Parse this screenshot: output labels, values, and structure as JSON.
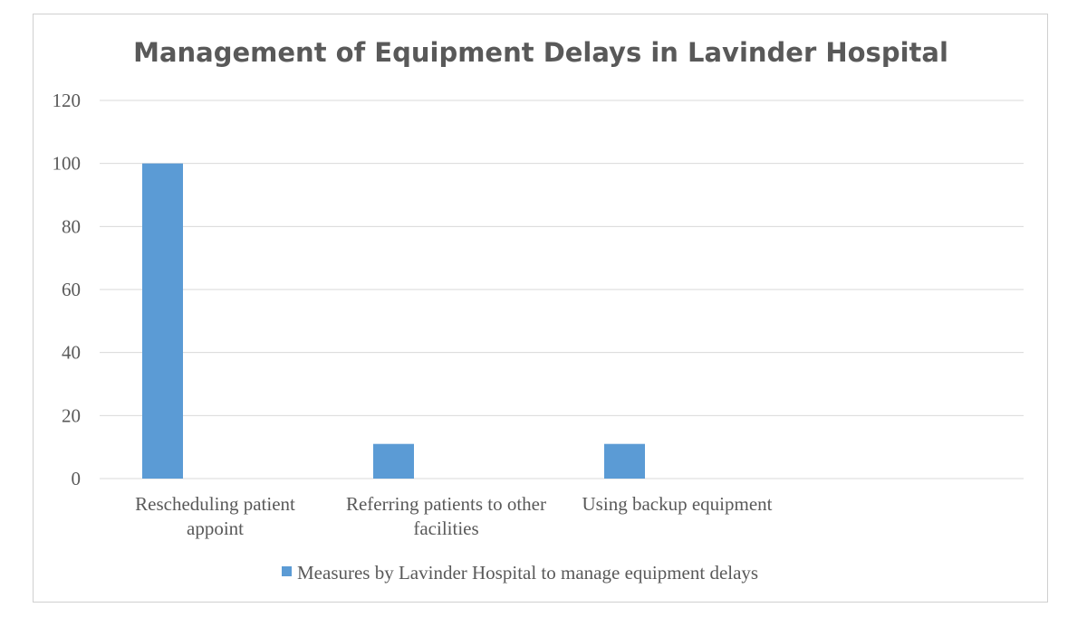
{
  "chart_data": {
    "type": "bar",
    "title": "Management of Equipment Delays in Lavinder Hospital",
    "categories": [
      [
        "Rescheduling patient",
        "appoint"
      ],
      [
        "Referring patients to other",
        "facilities"
      ],
      [
        "Using backup equipment"
      ],
      [
        ""
      ]
    ],
    "series": [
      {
        "name": "Measures by Lavinder Hospital to manage equipment delays",
        "color": "#5b9bd5",
        "values": [
          100,
          11,
          11,
          null
        ]
      }
    ],
    "ylim": [
      0,
      120
    ],
    "yticks": [
      "0",
      "20",
      "40",
      "60",
      "80",
      "100",
      "120"
    ],
    "grid": true,
    "legend_position": "bottom"
  }
}
